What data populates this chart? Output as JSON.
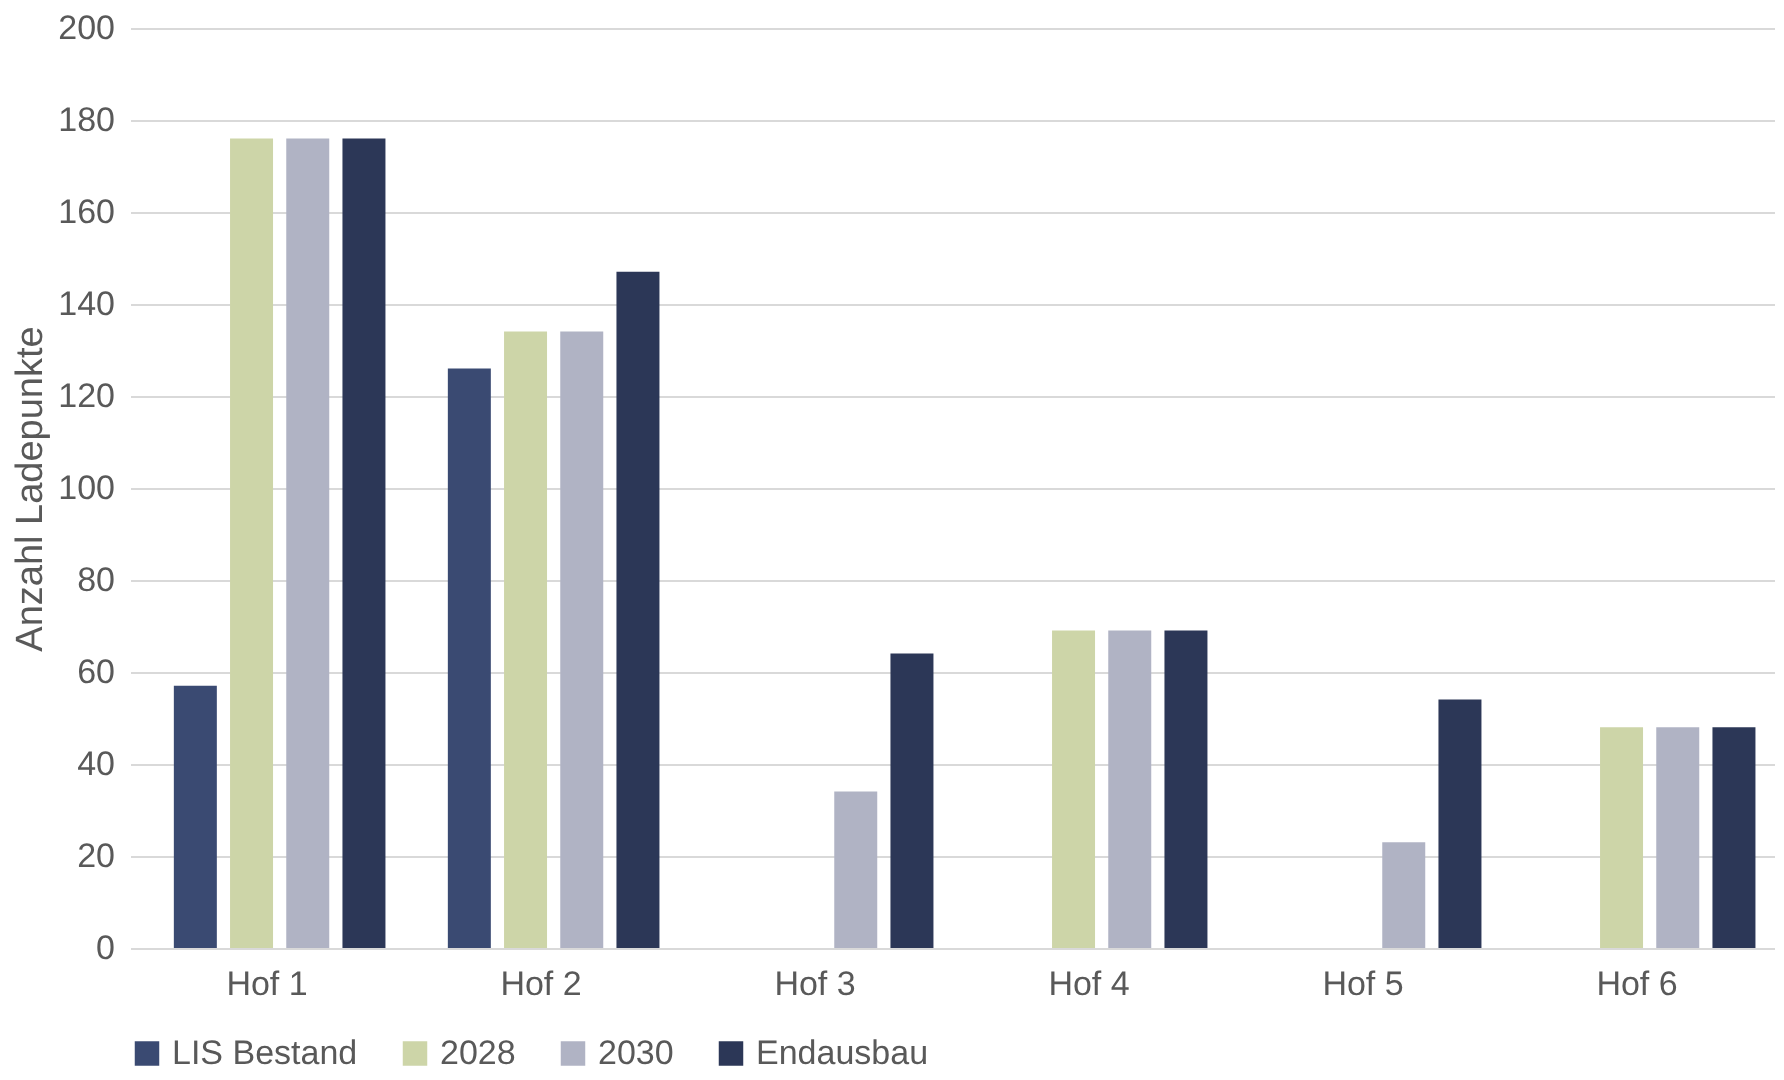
{
  "chart_data": {
    "type": "bar",
    "ylabel": "Anzahl Ladepunkte",
    "categories": [
      "Hof 1",
      "Hof 2",
      "Hof 3",
      "Hof 4",
      "Hof 5",
      "Hof 6"
    ],
    "series": [
      {
        "name": "LIS Bestand",
        "color": "#3a4a72",
        "values": [
          57,
          126,
          null,
          null,
          null,
          null
        ]
      },
      {
        "name": "2028",
        "color": "#cdd5a8",
        "values": [
          176,
          134,
          null,
          69,
          null,
          48
        ]
      },
      {
        "name": "2030",
        "color": "#b0b3c4",
        "values": [
          176,
          134,
          34,
          69,
          23,
          48
        ]
      },
      {
        "name": "Endausbau",
        "color": "#2c3757",
        "values": [
          176,
          147,
          64,
          69,
          54,
          48
        ]
      }
    ],
    "ylim": [
      0,
      200
    ],
    "yticks": [
      0,
      20,
      40,
      60,
      80,
      100,
      120,
      140,
      160,
      180,
      200
    ],
    "grid": "y",
    "legend": "bottom"
  }
}
